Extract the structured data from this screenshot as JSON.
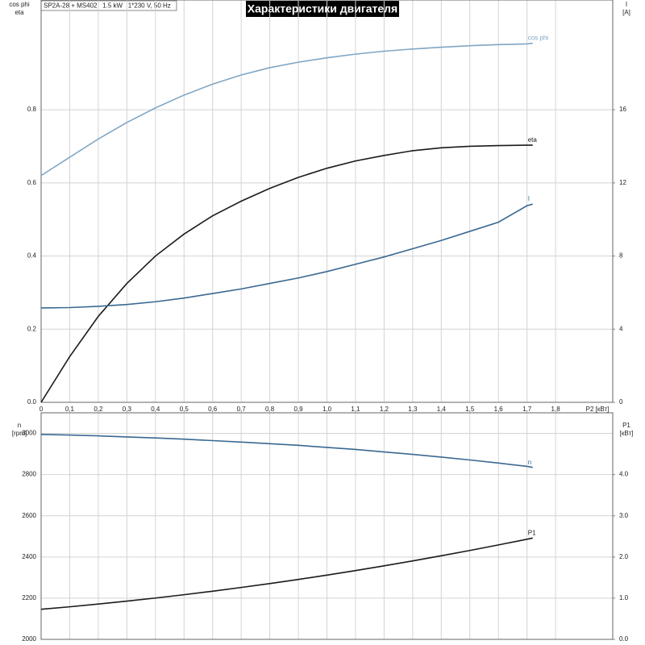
{
  "chart_data": [
    {
      "type": "line",
      "title": "Характеристики двигателя",
      "subtitle": "SP2A-28 + MS402   1.5 kW   1*230 V, 50 Hz",
      "xlabel": "P2 [кВт]",
      "ylabel": [
        "cos phi",
        "eta"
      ],
      "y2label": [
        "I",
        "[A]"
      ],
      "xlim": [
        0,
        2.0
      ],
      "xticks": [
        0,
        {
          "value": 0.1,
          "label": "0,1"
        },
        {
          "value": 0.2,
          "label": "0,2"
        },
        {
          "value": 0.3,
          "label": "0,3"
        },
        {
          "value": 0.4,
          "label": "0,4"
        },
        {
          "value": 0.5,
          "label": "0,5"
        },
        {
          "value": 0.6,
          "label": "0,6"
        },
        {
          "value": 0.7,
          "label": "0,7"
        },
        {
          "value": 0.8,
          "label": "0,8"
        },
        {
          "value": 0.9,
          "label": "0,9"
        },
        {
          "value": 1.0,
          "label": "1,0"
        },
        {
          "value": 1.1,
          "label": "1,1"
        },
        {
          "value": 1.2,
          "label": "1,2"
        },
        {
          "value": 1.3,
          "label": "1,3"
        },
        {
          "value": 1.4,
          "label": "1,4"
        },
        {
          "value": 1.5,
          "label": "1,5"
        },
        {
          "value": 1.6,
          "label": "1,6"
        },
        {
          "value": 1.7,
          "label": "1,7"
        },
        {
          "value": 1.8,
          "label": "1,8"
        }
      ],
      "ylim": [
        0,
        1.1
      ],
      "yticks": [
        {
          "value": 0,
          "label": "0.0"
        },
        0.2,
        0.4,
        0.6,
        0.8
      ],
      "y2lim": [
        0,
        22
      ],
      "y2ticks": [
        0,
        4,
        8,
        12,
        16
      ],
      "grid": true,
      "x": [
        0,
        0.1,
        0.2,
        0.3,
        0.4,
        0.5,
        0.6,
        0.7,
        0.8,
        0.9,
        1.0,
        1.1,
        1.2,
        1.3,
        1.4,
        1.5,
        1.6,
        1.7,
        1.72
      ],
      "series": [
        {
          "name": "cos phi",
          "color": "#7fa6c5",
          "values": [
            0.62,
            0.67,
            0.72,
            0.765,
            0.805,
            0.84,
            0.87,
            0.895,
            0.915,
            0.93,
            0.942,
            0.952,
            0.96,
            0.966,
            0.971,
            0.975,
            0.978,
            0.98,
            0.982
          ]
        },
        {
          "name": "eta",
          "color": "#1a1a1a",
          "values": [
            0,
            0.125,
            0.235,
            0.325,
            0.4,
            0.46,
            0.51,
            0.55,
            0.585,
            0.615,
            0.64,
            0.66,
            0.675,
            0.688,
            0.696,
            0.7,
            0.702,
            0.703,
            0.703
          ]
        },
        {
          "name": "I",
          "color": "#3a6891",
          "axis": "y2",
          "values": [
            5.16,
            5.18,
            5.25,
            5.35,
            5.5,
            5.7,
            5.95,
            6.2,
            6.5,
            6.8,
            7.15,
            7.55,
            7.95,
            8.4,
            8.85,
            9.35,
            9.85,
            10.75,
            10.84
          ]
        }
      ]
    },
    {
      "type": "line",
      "ylabel": [
        "n",
        "[rpm]"
      ],
      "y2label": [
        "P1",
        "[кВт]"
      ],
      "xlim": [
        0,
        2.0
      ],
      "ylim": [
        2000,
        3100
      ],
      "yticks": [
        2000,
        2200,
        2400,
        2600,
        2800,
        3000
      ],
      "y2lim": [
        0,
        5.5
      ],
      "y2ticks": [
        {
          "value": 0,
          "label": "0.0"
        },
        {
          "value": 1,
          "label": "1.0"
        },
        {
          "value": 2,
          "label": "2.0"
        },
        {
          "value": 3,
          "label": "3.0"
        },
        {
          "value": 4,
          "label": "4.0"
        }
      ],
      "grid": true,
      "x": [
        0,
        0.1,
        0.2,
        0.3,
        0.4,
        0.5,
        0.6,
        0.7,
        0.8,
        0.9,
        1.0,
        1.1,
        1.2,
        1.3,
        1.4,
        1.5,
        1.6,
        1.7,
        1.72
      ],
      "series": [
        {
          "name": "n",
          "color": "#3a6891",
          "values": [
            2995,
            2992,
            2988,
            2983,
            2978,
            2972,
            2965,
            2958,
            2950,
            2942,
            2932,
            2922,
            2910,
            2898,
            2885,
            2871,
            2856,
            2840,
            2835
          ]
        },
        {
          "name": "P1",
          "color": "#1a1a1a",
          "axis": "y2",
          "values": [
            0.73,
            0.79,
            0.857,
            0.928,
            1.003,
            1.084,
            1.169,
            1.26,
            1.355,
            1.455,
            1.56,
            1.67,
            1.785,
            1.904,
            2.029,
            2.158,
            2.292,
            2.431,
            2.46
          ]
        }
      ]
    }
  ]
}
